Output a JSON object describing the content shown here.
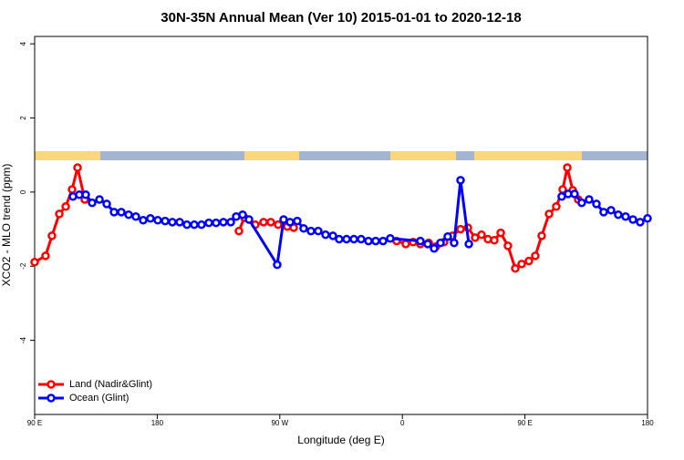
{
  "chart_data": {
    "type": "line",
    "title": "30N-35N Annual Mean (Ver 10)   2015-01-01 to 2020-12-18",
    "x_label": "Longitude (deg E)",
    "y_label": "XCO2 - MLO trend (ppm)",
    "xlim": [
      90,
      540
    ],
    "ylim": [
      -6,
      4.2
    ],
    "xticks": [
      {
        "value": 90,
        "label": "90 E"
      },
      {
        "value": 180,
        "label": "180"
      },
      {
        "value": 270,
        "label": "90 W"
      },
      {
        "value": 360,
        "label": "0"
      },
      {
        "value": 450,
        "label": "90 E"
      },
      {
        "value": 540,
        "label": "180"
      }
    ],
    "yticks": [
      -4,
      -2,
      0,
      2,
      4
    ],
    "legend": "bottomleft",
    "series": [
      {
        "name": "Land (Nadir&Glint)",
        "color": "#ff0000",
        "x": [
          90.0,
          98.0,
          102.7,
          108.1,
          112.8,
          117.5,
          121.5,
          126.8,
          180,
          240.0,
          244.0,
          252.0,
          258.1,
          263.4,
          268.8,
          275.5,
          280.2,
          320,
          355.8,
          362.5,
          367.9,
          373.2,
          379.3,
          384.6,
          390.6,
          396.7,
          402.7,
          408.1,
          413.4,
          418.1,
          422.8,
          427.5,
          432.2,
          437.5,
          442.9,
          447.6,
          452.9,
          457.6,
          462.3,
          467.7,
          473.0,
          477.7,
          481.1,
          485.1,
          489.1
        ],
        "values": [
          -1.89,
          -1.72,
          -1.18,
          -0.59,
          -0.39,
          0.07,
          0.66,
          -0.2,
          null,
          -1.05,
          -0.69,
          -0.88,
          -0.81,
          -0.81,
          -0.88,
          -0.93,
          -0.96,
          null,
          -1.32,
          -1.4,
          -1.35,
          -1.4,
          -1.37,
          -1.47,
          -1.35,
          -1.18,
          -1.0,
          -0.96,
          -1.23,
          -1.15,
          -1.27,
          -1.3,
          -1.1,
          -1.45,
          -2.06,
          -1.94,
          -1.86,
          -1.72,
          -1.18,
          -0.59,
          -0.39,
          0.07,
          0.66,
          0.05,
          -0.2
        ]
      },
      {
        "name": "Ocean (Glint)",
        "color": "#0000ff",
        "x": [
          118.1,
          122.8,
          127.5,
          132.2,
          137.6,
          142.9,
          148.3,
          153.6,
          159.0,
          164.3,
          169.7,
          175.0,
          180.4,
          185.8,
          191.1,
          196.5,
          201.8,
          207.2,
          212.5,
          217.9,
          223.2,
          228.6,
          234.0,
          238.0,
          242.7,
          247.4,
          268.1,
          272.8,
          277.5,
          282.8,
          287.5,
          292.9,
          298.2,
          303.6,
          309.0,
          313.6,
          319.0,
          324.4,
          329.7,
          335.1,
          340.4,
          345.8,
          351.1,
          373.2,
          378.6,
          383.3,
          388.0,
          393.3,
          398.0,
          402.7,
          408.8,
          445,
          477.0,
          481.7,
          486.4,
          491.7,
          497.1,
          502.5,
          507.8,
          513.2,
          518.5,
          523.9,
          529.3,
          534.6,
          540.0
        ],
        "values": [
          -0.12,
          -0.07,
          -0.07,
          -0.29,
          -0.2,
          -0.32,
          -0.54,
          -0.54,
          -0.61,
          -0.66,
          -0.76,
          -0.71,
          -0.76,
          -0.78,
          -0.81,
          -0.81,
          -0.88,
          -0.88,
          -0.88,
          -0.83,
          -0.83,
          -0.81,
          -0.81,
          -0.66,
          -0.61,
          -0.74,
          -1.96,
          -0.74,
          -0.81,
          -0.78,
          -0.98,
          -1.05,
          -1.05,
          -1.15,
          -1.18,
          -1.27,
          -1.27,
          -1.27,
          -1.27,
          -1.32,
          -1.32,
          -1.32,
          -1.25,
          -1.32,
          -1.4,
          -1.52,
          -1.37,
          -1.2,
          -1.37,
          0.32,
          -1.4,
          null,
          -0.12,
          -0.05,
          -0.05,
          -0.29,
          -0.2,
          -0.32,
          -0.54,
          -0.49,
          -0.61,
          -0.66,
          -0.74,
          -0.81,
          -0.71
        ]
      }
    ]
  }
}
